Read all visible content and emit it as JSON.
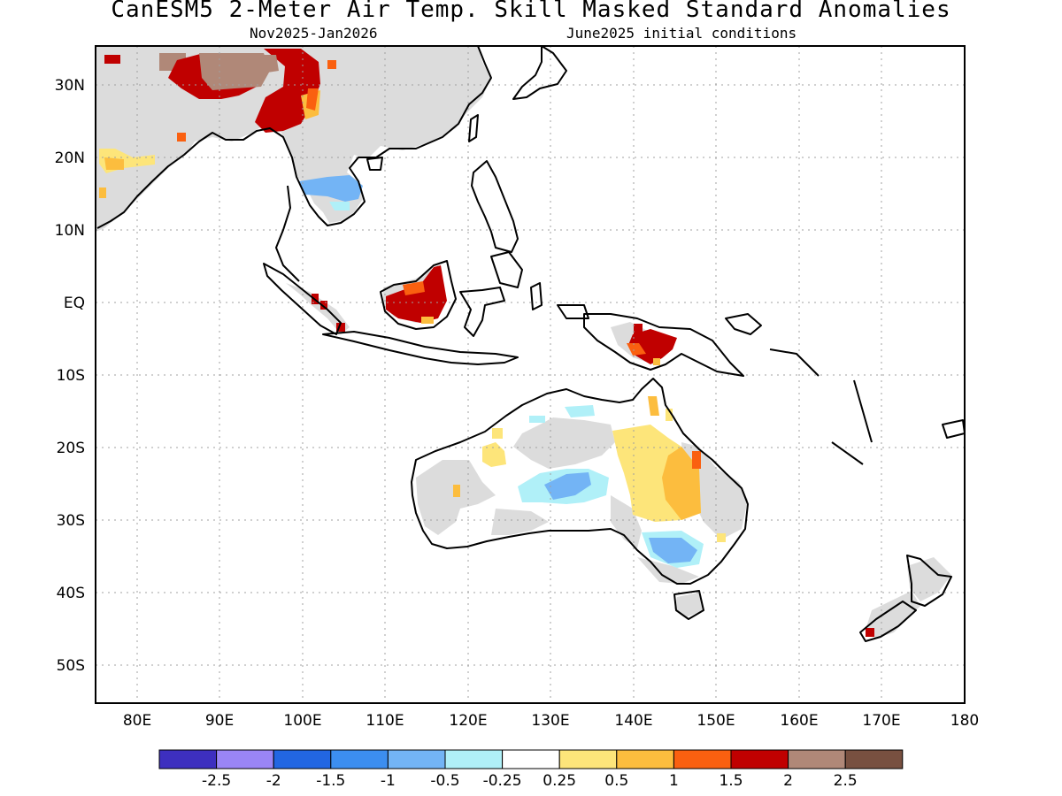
{
  "header": {
    "title": "CanESM5 2-Meter Air Temp. Skill Masked Standard Anomalies",
    "period": "Nov2025-Jan2026",
    "initial_conditions": "June2025 initial conditions"
  },
  "map": {
    "lat_labels": [
      "30N",
      "20N",
      "10N",
      "EQ",
      "10S",
      "20S",
      "30S",
      "40S",
      "50S"
    ],
    "lon_labels": [
      "80E",
      "90E",
      "100E",
      "110E",
      "120E",
      "130E",
      "140E",
      "150E",
      "160E",
      "170E",
      "180"
    ],
    "region": "Asia-Pacific / Maritime Continent / Australia"
  },
  "legend": {
    "labels": [
      "-2.5",
      "-2",
      "-1.5",
      "-1",
      "-0.5",
      "-0.25",
      "0.25",
      "0.5",
      "1",
      "1.5",
      "2",
      "2.5"
    ],
    "colors": [
      "#3d2fbf",
      "#9a85f5",
      "#2266e2",
      "#3c8ef0",
      "#73b4f5",
      "#b0f0f8",
      "#ffffff",
      "#fde57a",
      "#fcbd3e",
      "#fa6010",
      "#c00000",
      "#b08878",
      "#785040"
    ]
  },
  "colors": {
    "mask_gray": "#dcdcdc",
    "coast": "#000000",
    "grid": "#a0a0a0"
  }
}
